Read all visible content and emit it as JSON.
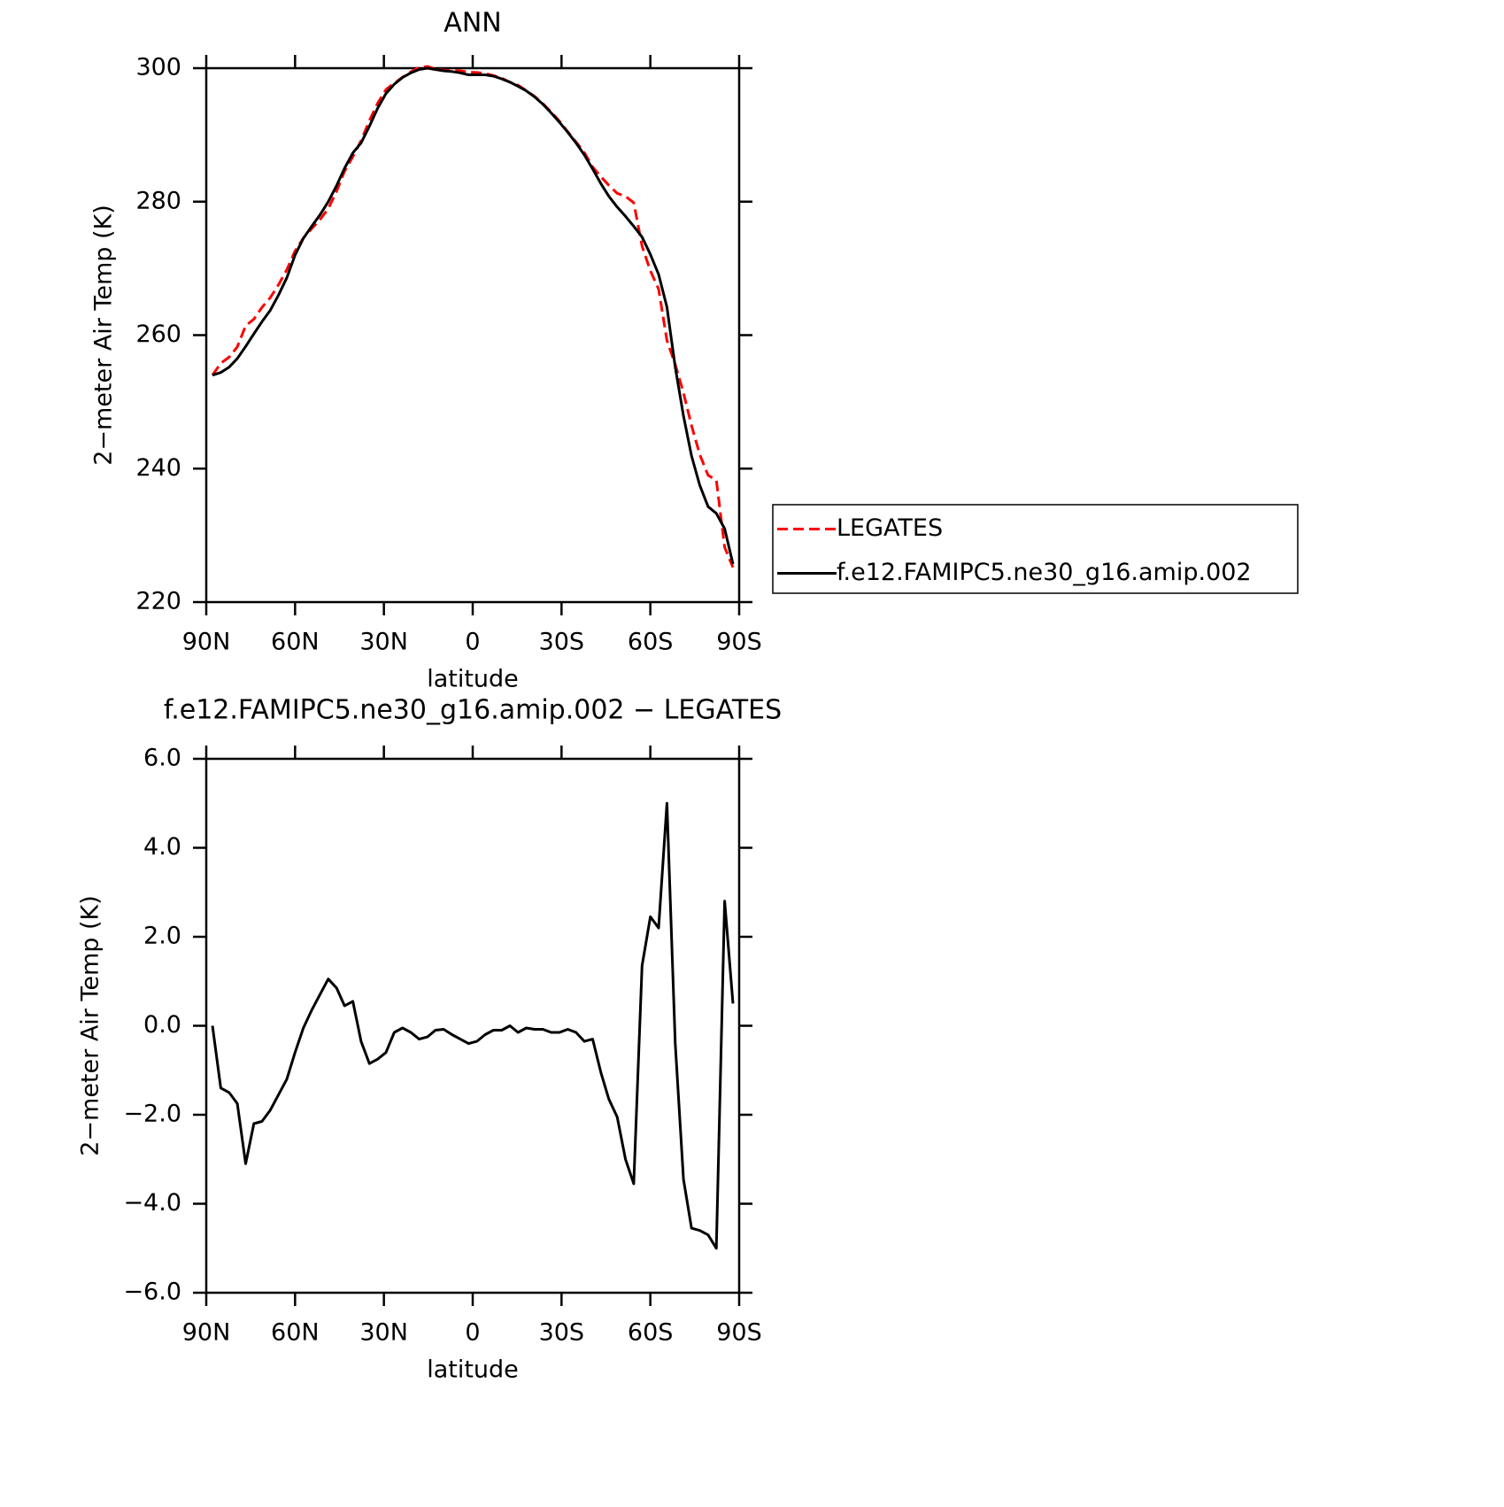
{
  "chart_data": [
    {
      "type": "line",
      "title": "ANN",
      "x_label": "latitude",
      "y_label": "2−meter Air Temp (K)",
      "x": [
        87.9,
        85.1,
        82.3,
        79.5,
        76.7,
        73.9,
        71.2,
        68.4,
        65.6,
        62.8,
        60.0,
        57.2,
        54.4,
        51.6,
        48.8,
        46.0,
        43.3,
        40.5,
        37.7,
        34.9,
        32.1,
        29.3,
        26.5,
        23.7,
        20.9,
        18.1,
        15.3,
        12.6,
        9.8,
        7.0,
        4.2,
        1.4,
        -1.4,
        -4.2,
        -7.0,
        -9.8,
        -12.6,
        -15.3,
        -18.1,
        -20.9,
        -23.7,
        -26.5,
        -29.3,
        -32.1,
        -34.9,
        -37.7,
        -40.5,
        -43.3,
        -46.0,
        -48.8,
        -51.6,
        -54.4,
        -57.2,
        -60.0,
        -62.8,
        -65.6,
        -68.4,
        -71.2,
        -73.9,
        -76.7,
        -79.5,
        -82.3,
        -85.1,
        -87.9
      ],
      "series": [
        {
          "name": "LEGATES",
          "color": "#ff0000",
          "dashed": true,
          "values": [
            254.0,
            255.8,
            256.7,
            258.25,
            261.4,
            262.4,
            264.15,
            265.6,
            267.55,
            269.8,
            272.6,
            274.55,
            275.95,
            277.3,
            278.95,
            281.55,
            284.55,
            286.75,
            289.15,
            292.15,
            294.75,
            296.8,
            297.75,
            298.65,
            299.45,
            300.1,
            300.25,
            299.9,
            299.68,
            299.7,
            299.6,
            299.4,
            299.35,
            299.2,
            298.9,
            298.5,
            297.9,
            297.45,
            296.65,
            295.78,
            294.68,
            293.45,
            292.05,
            290.48,
            288.95,
            287.35,
            285.2,
            283.75,
            282.45,
            281.25,
            280.8,
            279.85,
            273.35,
            269.65,
            266.9,
            259.2,
            255.6,
            251.35,
            246.45,
            242.1,
            239.0,
            238.3,
            228.2,
            225.2
          ]
        },
        {
          "name": "f.e12.FAMIPC5.ne30_g16.amip.002",
          "color": "#000000",
          "dashed": false,
          "values": [
            254.0,
            254.4,
            255.2,
            256.5,
            258.3,
            260.2,
            262.0,
            263.7,
            266.0,
            268.6,
            272.0,
            274.5,
            276.3,
            278.0,
            280.0,
            282.4,
            285.0,
            287.3,
            288.8,
            291.3,
            294.0,
            296.2,
            297.6,
            298.6,
            299.3,
            299.8,
            300.0,
            299.8,
            299.6,
            299.5,
            299.3,
            299.0,
            299.0,
            299.0,
            298.8,
            298.4,
            297.9,
            297.3,
            296.6,
            295.7,
            294.6,
            293.3,
            291.9,
            290.4,
            288.8,
            287.0,
            284.9,
            282.7,
            280.8,
            279.2,
            277.8,
            276.3,
            274.7,
            272.1,
            269.1,
            264.2,
            255.2,
            247.9,
            241.9,
            237.5,
            234.3,
            233.3,
            231.0,
            225.7
          ]
        }
      ],
      "xlim": [
        90,
        -90
      ],
      "xticks": [
        {
          "value": 90,
          "label": "90N"
        },
        {
          "value": 60,
          "label": "60N"
        },
        {
          "value": 30,
          "label": "30N"
        },
        0,
        {
          "value": -30,
          "label": "30S"
        },
        {
          "value": -60,
          "label": "60S"
        },
        {
          "value": -90,
          "label": "90S"
        }
      ],
      "ylim": [
        220,
        300
      ],
      "yticks": [
        220,
        240,
        260,
        280,
        300
      ],
      "legend": "outside right"
    },
    {
      "type": "line",
      "title": "f.e12.FAMIPC5.ne30_g16.amip.002 − LEGATES",
      "x_label": "latitude",
      "y_label": "2−meter Air Temp (K)",
      "x": [
        87.9,
        85.1,
        82.3,
        79.5,
        76.7,
        73.9,
        71.2,
        68.4,
        65.6,
        62.8,
        60.0,
        57.2,
        54.4,
        51.6,
        48.8,
        46.0,
        43.3,
        40.5,
        37.7,
        34.9,
        32.1,
        29.3,
        26.5,
        23.7,
        20.9,
        18.1,
        15.3,
        12.6,
        9.8,
        7.0,
        4.2,
        1.4,
        -1.4,
        -4.2,
        -7.0,
        -9.8,
        -12.6,
        -15.3,
        -18.1,
        -20.9,
        -23.7,
        -26.5,
        -29.3,
        -32.1,
        -34.9,
        -37.7,
        -40.5,
        -43.3,
        -46.0,
        -48.8,
        -51.6,
        -54.4,
        -57.2,
        -60.0,
        -62.8,
        -65.6,
        -68.4,
        -71.2,
        -73.9,
        -76.7,
        -79.5,
        -82.3,
        -85.1,
        -87.9
      ],
      "values": [
        0.0,
        -1.4,
        -1.5,
        -1.75,
        -3.1,
        -2.2,
        -2.15,
        -1.9,
        -1.55,
        -1.2,
        -0.6,
        -0.05,
        0.35,
        0.7,
        1.05,
        0.85,
        0.45,
        0.55,
        -0.35,
        -0.85,
        -0.75,
        -0.6,
        -0.15,
        -0.05,
        -0.15,
        -0.3,
        -0.25,
        -0.1,
        -0.08,
        -0.2,
        -0.3,
        -0.4,
        -0.35,
        -0.2,
        -0.1,
        -0.1,
        0.0,
        -0.15,
        -0.05,
        -0.08,
        -0.08,
        -0.15,
        -0.15,
        -0.08,
        -0.15,
        -0.35,
        -0.3,
        -1.05,
        -1.65,
        -2.05,
        -3.0,
        -3.55,
        1.35,
        2.45,
        2.2,
        5.0,
        -0.4,
        -3.45,
        -4.55,
        -4.6,
        -4.7,
        -5.0,
        2.8,
        0.5
      ],
      "color": "#000000",
      "xlim": [
        90,
        -90
      ],
      "xticks": [
        {
          "value": 90,
          "label": "90N"
        },
        {
          "value": 60,
          "label": "60N"
        },
        {
          "value": 30,
          "label": "30N"
        },
        0,
        {
          "value": -30,
          "label": "30S"
        },
        {
          "value": -60,
          "label": "60S"
        },
        {
          "value": -90,
          "label": "90S"
        }
      ],
      "ylim": [
        -6,
        6
      ],
      "yticks": [
        {
          "value": -6,
          "label": "−6.0"
        },
        {
          "value": -4,
          "label": "−4.0"
        },
        {
          "value": -2,
          "label": "−2.0"
        },
        {
          "value": 0,
          "label": "0.0"
        },
        {
          "value": 2,
          "label": "2.0"
        },
        {
          "value": 4,
          "label": "4.0"
        },
        {
          "value": 6,
          "label": "6.0"
        }
      ]
    }
  ]
}
